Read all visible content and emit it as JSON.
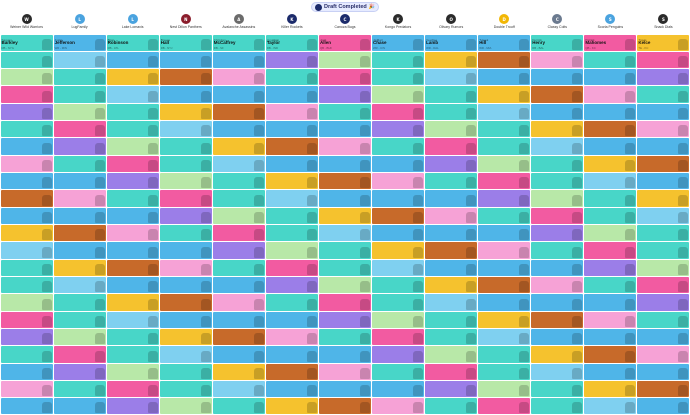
{
  "page": {
    "status_title": "Draft Completed",
    "status_emoji": "🎉",
    "rounds_shown": 22
  },
  "teams": [
    {
      "name": "Weiner Wild Warriors",
      "color": "#2b2b2b",
      "abbr": "W"
    },
    {
      "name": "LugFamily",
      "color": "#4aa3df",
      "abbr": "L"
    },
    {
      "name": "Lake Lomaxis",
      "color": "#4aa3df",
      "abbr": "L"
    },
    {
      "name": "Nest Dillon Panthers",
      "color": "#8b1d2c",
      "abbr": "N"
    },
    {
      "name": "Avalanche Assassins",
      "color": "#6b6b6b",
      "abbr": "A"
    },
    {
      "name": "Killer Rockets",
      "color": "#1c2b6b",
      "abbr": "K"
    },
    {
      "name": "Canoza Bugs",
      "color": "#1c2b6b",
      "abbr": "C"
    },
    {
      "name": "Kongo Predators",
      "color": "#2b2b2b",
      "abbr": "K"
    },
    {
      "name": "Olivary Rumors",
      "color": "#2b2b2b",
      "abbr": "O"
    },
    {
      "name": "Double Trouff",
      "color": "#f2b705",
      "abbr": "D"
    },
    {
      "name": "Classy Colts",
      "color": "#6b7a8f",
      "abbr": "C"
    },
    {
      "name": "Scoria Penguins",
      "color": "#4aa3df",
      "abbr": "S"
    },
    {
      "name": "Snack Dials",
      "color": "#2b2b2b",
      "abbr": "S"
    }
  ],
  "position_colors": {
    "QB": "#f25ba1",
    "RB": "#48d6c8",
    "WR": "#4fb5e8",
    "TE": "#f5c22e",
    "K": "#9b7ee8",
    "DEF": "#c76a2a",
    "LB": "#7fd0f0",
    "DL": "#f6a2d6",
    "DB": "#b8e8a8"
  },
  "rounds": [
    [
      {
        "first": "Saquon",
        "last": "Barkley",
        "pos": "RB",
        "stats": "RB - NYG"
      },
      {
        "first": "Justin",
        "last": "Jefferson",
        "pos": "WR",
        "stats": "WR - MIN"
      },
      {
        "first": "Bijan",
        "last": "Robinson",
        "pos": "RB",
        "stats": "RB - ATL"
      },
      {
        "first": "Breece",
        "last": "Hall",
        "pos": "RB",
        "stats": "RB - NYJ"
      },
      {
        "first": "Christian",
        "last": "McCaffrey",
        "pos": "RB",
        "stats": "RB - SF"
      },
      {
        "first": "Jonathan",
        "last": "Taylor",
        "pos": "RB",
        "stats": "RB - IND"
      },
      {
        "first": "Josh",
        "last": "Allen",
        "pos": "QB",
        "stats": "QB - BUF"
      },
      {
        "first": "Ja'Marr",
        "last": "Chase",
        "pos": "WR",
        "stats": "WR - CIN"
      },
      {
        "first": "CeeDee",
        "last": "Lamb",
        "pos": "WR",
        "stats": "WR - DAL"
      },
      {
        "first": "Tyreek",
        "last": "Hill",
        "pos": "WR",
        "stats": "WR - MIA"
      },
      {
        "first": "Derrick",
        "last": "Henry",
        "pos": "RB",
        "stats": "RB - BAL"
      },
      {
        "first": "Patrick",
        "last": "Mahomes",
        "pos": "QB",
        "stats": "QB - KC"
      },
      {
        "first": "Travis",
        "last": "Kelce",
        "pos": "TE",
        "stats": "TE - KC"
      }
    ]
  ]
}
